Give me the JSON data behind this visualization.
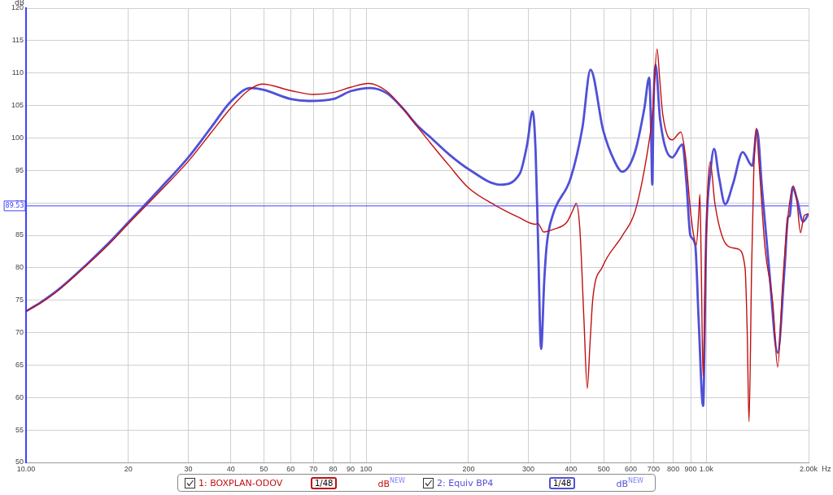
{
  "chart_data": {
    "type": "line",
    "ylabel": "dB",
    "xlabel": "Hz",
    "log": "x",
    "grid": true,
    "legend": "bottom",
    "xlim": [
      10,
      2000
    ],
    "xticks": [
      {
        "value": 10,
        "label": "10.00"
      },
      20,
      30,
      40,
      50,
      60,
      70,
      80,
      90,
      100,
      200,
      300,
      400,
      500,
      600,
      700,
      800,
      900,
      {
        "value": 1000,
        "label": "1.0k"
      },
      {
        "value": 2000,
        "label": "2.00k"
      }
    ],
    "ylim": [
      50,
      120
    ],
    "yticks": [
      50,
      55,
      60,
      65,
      70,
      75,
      80,
      85,
      90,
      95,
      100,
      105,
      110,
      115,
      120
    ],
    "ref_lines": [
      {
        "axis": "y",
        "value": 89.53,
        "label": "89.53",
        "color": "#4040ff"
      }
    ],
    "annotations": [
      "1/48",
      "dB$^{NEW}$",
      "1/48",
      "dB$^{NEW}$"
    ],
    "series": [
      {
        "name": "1: BOXPLAN-ODOV",
        "color": "#c01010",
        "x": [
          10,
          11,
          12.5,
          15,
          17.5,
          20,
          25,
          30,
          35,
          40,
          45,
          49.5,
          60,
          69.8,
          80,
          90,
          101.6,
          115,
          128,
          142,
          153,
          175,
          200,
          240,
          280,
          314,
          320,
          332.7,
          355,
          389,
          405,
          414.7,
          425,
          437,
          446.9,
          455,
          464,
          495,
          566,
          617,
          665,
          694,
          717,
          730,
          744.7,
          794,
          842,
          870,
          898,
          915,
          935,
          950,
          958,
          966,
          979,
          995,
          1010,
          1027,
          1060,
          1113,
          1170,
          1239,
          1301,
          1320,
          1336,
          1360,
          1380,
          1403,
          1430,
          1488,
          1570,
          1622,
          1680,
          1740,
          1804,
          1850,
          1893,
          1940,
          2000
        ],
        "values": [
          73.3,
          74.5,
          76.6,
          80.3,
          83.6,
          86.8,
          92.0,
          96.4,
          100.8,
          104.6,
          107.3,
          108.3,
          107.3,
          106.7,
          107.0,
          107.8,
          108.4,
          107.2,
          104.6,
          101.6,
          99.5,
          95.8,
          92.3,
          89.6,
          87.8,
          86.7,
          86.8,
          85.5,
          85.9,
          87.0,
          88.8,
          89.9,
          86.0,
          72,
          61.4,
          68,
          75.2,
          80.1,
          84.9,
          88.6,
          96.5,
          103.3,
          113.7,
          109,
          103.7,
          99.7,
          100.9,
          97,
          89,
          85.5,
          83.5,
          88,
          91.3,
          82,
          63.3,
          80,
          92,
          96.3,
          90,
          84.9,
          83.2,
          82.9,
          79.9,
          70,
          56.3,
          80,
          95,
          101.5,
          96,
          83.2,
          74.5,
          64.7,
          78,
          88,
          92.6,
          90,
          85.4,
          88.0,
          88.3
        ]
      },
      {
        "name": "2: Equiv BP4",
        "color": "#5050d8",
        "x": [
          10,
          11,
          12.5,
          15,
          17.5,
          20,
          25,
          30,
          35,
          40,
          45.7,
          50,
          60,
          68,
          80,
          90,
          103,
          115,
          128,
          142,
          153,
          175,
          200,
          248,
          283,
          297.5,
          308.8,
          315,
          320,
          327,
          334,
          340,
          354.8,
          398.8,
          432.5,
          456.8,
          497.7,
          536.6,
          566,
          617,
          658,
          679.6,
          688,
          694,
          700,
          709.5,
          732,
          794,
          851,
          875,
          898,
          928,
          950,
          979,
          1000,
          1030,
          1055,
          1090,
          1137,
          1200,
          1280,
          1366,
          1410,
          1460,
          1530,
          1622,
          1700,
          1740,
          1760,
          1795,
          1850,
          1925,
          2000
        ],
        "values": [
          73.3,
          74.6,
          76.7,
          80.4,
          83.8,
          87.0,
          92.4,
          97.0,
          101.6,
          105.6,
          107.7,
          107.4,
          106.0,
          105.7,
          106.0,
          107.2,
          107.7,
          106.9,
          104.6,
          101.8,
          100.3,
          97.5,
          95.2,
          92.8,
          94.5,
          99.0,
          104.1,
          98,
          85,
          67.5,
          78,
          83.7,
          88.3,
          93.7,
          101.6,
          110.5,
          101.2,
          96.5,
          94.8,
          97.8,
          104.6,
          109.3,
          102,
          92.8,
          105,
          111.3,
          102.8,
          97.0,
          99.0,
          93,
          85,
          83.6,
          72,
          58.7,
          85,
          95,
          98.3,
          94,
          89.8,
          93,
          97.8,
          95.7,
          101.3,
          92,
          80,
          66.9,
          80,
          87.8,
          88,
          92.4,
          90.5,
          87.1,
          88.3
        ]
      }
    ]
  }
}
